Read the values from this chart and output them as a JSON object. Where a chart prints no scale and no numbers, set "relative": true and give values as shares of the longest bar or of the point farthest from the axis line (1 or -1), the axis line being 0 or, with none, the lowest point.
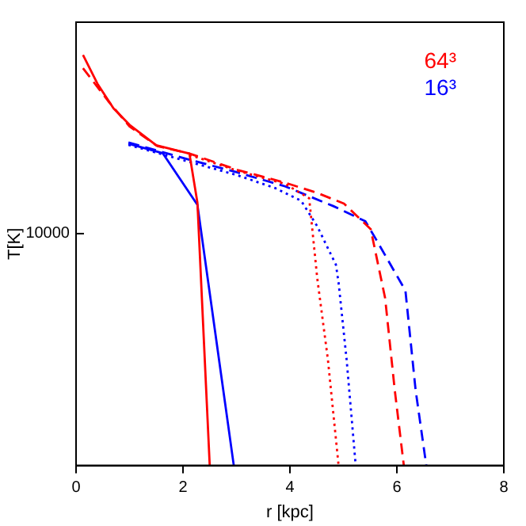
{
  "chart_data": {
    "type": "line",
    "xlabel": "r [kpc]",
    "ylabel": "T[K]",
    "relative": true,
    "xlim": [
      0,
      8
    ],
    "xticks": [
      0,
      2,
      4,
      6,
      8
    ],
    "annotations": [
      "10000"
    ],
    "legend": "top right",
    "marker": "none",
    "grid": false,
    "series": [
      {
        "name": "64³",
        "color": "#ff0000",
        "line_style": "solid",
        "x": [
          0.13,
          0.4,
          0.7,
          1.0,
          1.5,
          2.12,
          2.27,
          2.5
        ],
        "values": [
          1,
          0.93,
          0.87,
          0.83,
          0.78,
          0.76,
          0.64,
          0
        ]
      },
      {
        "color": "#ff0000",
        "line_style": "dashed",
        "x": [
          0.13,
          0.6,
          1.0,
          1.52,
          2.12,
          3.02,
          3.91,
          4.51,
          5.01,
          5.51,
          5.78,
          5.96,
          6.13
        ],
        "values": [
          0.968,
          0.888,
          0.826,
          0.778,
          0.76,
          0.72,
          0.689,
          0.664,
          0.638,
          0.576,
          0.408,
          0.184,
          0
        ]
      },
      {
        "color": "#ff0000",
        "line_style": "dotted",
        "x": [
          2.12,
          3.02,
          3.91,
          4.36,
          4.51,
          4.71,
          4.91
        ],
        "values": [
          0.757,
          0.718,
          0.686,
          0.651,
          0.457,
          0.258,
          0
        ]
      },
      {
        "name": "16³",
        "color": "#0000ff",
        "line_style": "solid",
        "x": [
          0.98,
          1.62,
          2.27,
          2.95
        ],
        "values": [
          0.784,
          0.761,
          0.635,
          0
        ]
      },
      {
        "color": "#0000ff",
        "line_style": "dashed",
        "x": [
          0.98,
          2.12,
          3.02,
          3.91,
          4.81,
          5.41,
          5.61,
          6.16,
          6.35,
          6.55
        ],
        "values": [
          0.787,
          0.745,
          0.714,
          0.68,
          0.632,
          0.595,
          0.551,
          0.426,
          0.184,
          0
        ]
      },
      {
        "color": "#0000ff",
        "line_style": "dotted",
        "x": [
          0.98,
          3.02,
          3.72,
          4.21,
          4.51,
          4.86,
          4.91,
          5.06,
          5.23
        ],
        "values": [
          0.781,
          0.707,
          0.676,
          0.645,
          0.583,
          0.489,
          0.445,
          0.258,
          0
        ]
      }
    ]
  }
}
